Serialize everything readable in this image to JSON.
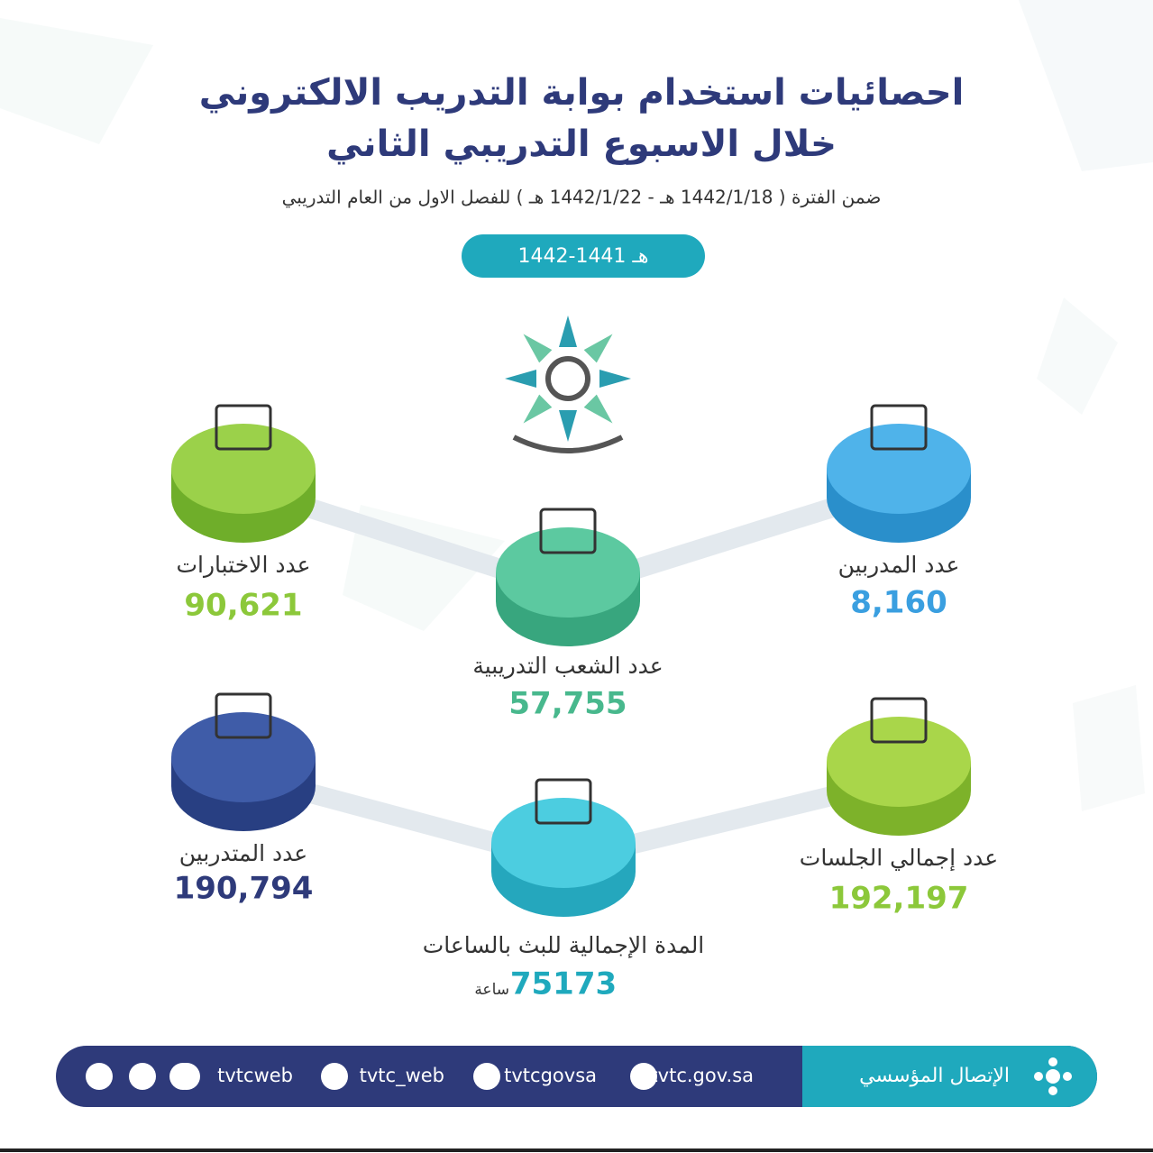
{
  "header": {
    "title_lines": [
      "احصائيات استخدام بوابة التدريب الالكتروني",
      "خلال الاسبوع التدريبي الثاني"
    ],
    "subtitle": "ضمن الفترة ( 1442/1/18 هـ  -  1442/1/22 هـ ) للفصل الاول من العام التدريبي",
    "year_badge": "1442-1441 هـ"
  },
  "stats": [
    {
      "label": "عدد المدربين",
      "value": "8,160"
    },
    {
      "label": "عدد الاختبارات",
      "value": "90,621"
    },
    {
      "label": "عدد الشعب التدريبية",
      "value": "57,755"
    },
    {
      "label": "عدد إجمالي الجلسات",
      "value": "192,197"
    },
    {
      "label": "عدد المتدربين",
      "value": "190,794"
    },
    {
      "label": "المدة الإجمالية للبث بالساعات",
      "value": "75173",
      "unit": "ساعة"
    }
  ],
  "footer": {
    "org": "الإتصال المؤسسي",
    "links": [
      "tvtc.gov.sa",
      "tvtcgovsa",
      "tvtc_web",
      "tvtcweb"
    ]
  }
}
